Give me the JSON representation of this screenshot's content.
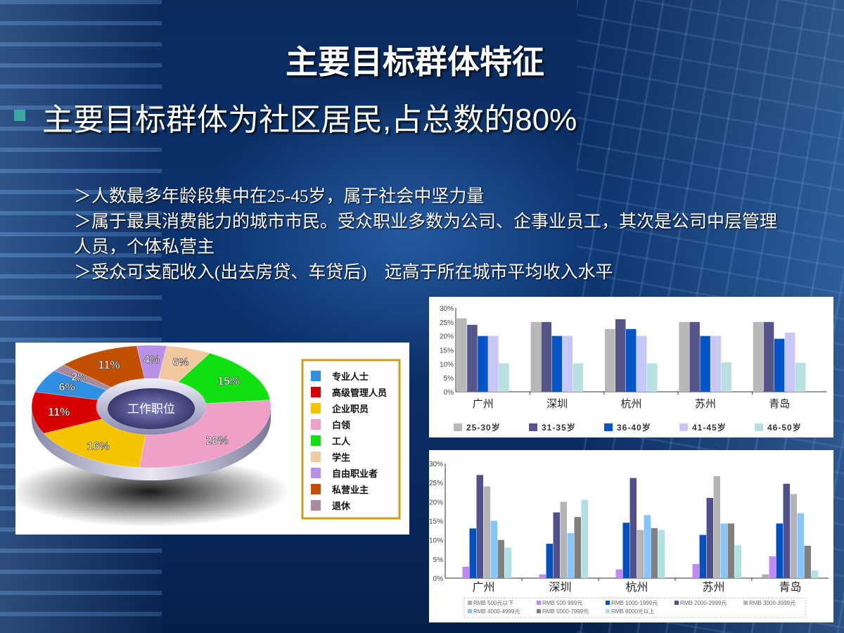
{
  "slide": {
    "title": "主要目标群体特征",
    "bullet": "主要目标群体为社区居民,占总数的80%",
    "points": [
      "＞人数最多年龄段集中在25-45岁，属于社会中坚力量",
      "＞属于最具消费能力的城市市民。受众职业多数为公司、企事业员工，其次是公司中层管理人员，个体私营主",
      "＞受众可支配收入(出去房贷、车贷后)　远高于所在城市平均收入水平"
    ],
    "bullet_color": "#3aa7a0"
  },
  "chart_data": [
    {
      "type": "pie",
      "title": "工作职位",
      "legend_position": "right",
      "slices": [
        {
          "label": "专业人士",
          "value": 6,
          "color": "#2f8fe0"
        },
        {
          "label": "高级管理人员",
          "value": 11,
          "color": "#d80000"
        },
        {
          "label": "企业职员",
          "value": 16,
          "color": "#f5c400"
        },
        {
          "label": "白领",
          "value": 28,
          "color": "#f0a0c8"
        },
        {
          "label": "工人",
          "value": 15,
          "color": "#10e010"
        },
        {
          "label": "学生",
          "value": 6,
          "color": "#f2c8a0"
        },
        {
          "label": "自由职业者",
          "value": 4,
          "color": "#b890e8"
        },
        {
          "label": "私营业主",
          "value": 11,
          "color": "#c05000"
        },
        {
          "label": "退休",
          "value": 2,
          "color": "#a88aa0"
        }
      ],
      "value_labels": [
        "6%",
        "11%",
        "16%",
        "28%",
        "15%",
        "6%",
        "4%",
        "11%",
        "2%"
      ]
    },
    {
      "type": "bar",
      "categories": [
        "广州",
        "深圳",
        "杭州",
        "苏州",
        "青岛"
      ],
      "ylim": [
        0,
        30
      ],
      "yticks": [
        "0%",
        "5%",
        "10%",
        "15%",
        "20%",
        "25%",
        "30%"
      ],
      "legend_position": "bottom",
      "series": [
        {
          "name": "25-30岁",
          "color": "#b8b8b8",
          "values": [
            26.3,
            25,
            22.5,
            25,
            25
          ]
        },
        {
          "name": "31-35岁",
          "color": "#55558a",
          "values": [
            24,
            25,
            26,
            25,
            25
          ]
        },
        {
          "name": "36-40岁",
          "color": "#0055c8",
          "values": [
            20,
            20,
            22.5,
            20,
            19
          ]
        },
        {
          "name": "41-45岁",
          "color": "#c8c8f8",
          "values": [
            20,
            20,
            20,
            20,
            21.2
          ]
        },
        {
          "name": "46-50岁",
          "color": "#b8e0e0",
          "values": [
            10.2,
            10.2,
            10.2,
            10.5,
            10.4
          ]
        }
      ]
    },
    {
      "type": "bar",
      "categories": [
        "广州",
        "深圳",
        "杭州",
        "苏州",
        "青岛"
      ],
      "ylim": [
        0,
        30
      ],
      "yticks": [
        "0%",
        "5%",
        "10%",
        "15%",
        "20%",
        "25%",
        "30%"
      ],
      "legend_position": "bottom",
      "series": [
        {
          "name": "RMB 500元以下",
          "color": "#b0b0b0",
          "values": [
            0,
            0,
            0,
            0,
            1
          ]
        },
        {
          "name": "RMB 500-999元",
          "color": "#c088f0",
          "values": [
            3,
            1,
            2.3,
            3.7,
            5.7
          ]
        },
        {
          "name": "RMB 1000-1999元",
          "color": "#0050c0",
          "values": [
            13,
            9,
            14.5,
            11.3,
            14.3
          ]
        },
        {
          "name": "RMB 2000-2999元",
          "color": "#50508a",
          "values": [
            27,
            17.2,
            26.2,
            21,
            24.7
          ]
        },
        {
          "name": "RMB 3000-3999元",
          "color": "#b4b4b4",
          "values": [
            24,
            20,
            12.6,
            26.7,
            22
          ]
        },
        {
          "name": "RMB 4000-4999元",
          "color": "#88c4ff",
          "values": [
            15,
            11.8,
            16.5,
            14.3,
            17
          ]
        },
        {
          "name": "RMB 5000-7999元",
          "color": "#808080",
          "values": [
            10,
            16,
            13.1,
            14.3,
            8.5
          ]
        },
        {
          "name": "RMB 8000元以上",
          "color": "#b0e0e4",
          "values": [
            8,
            20.5,
            12.6,
            8.6,
            2
          ]
        }
      ]
    }
  ]
}
